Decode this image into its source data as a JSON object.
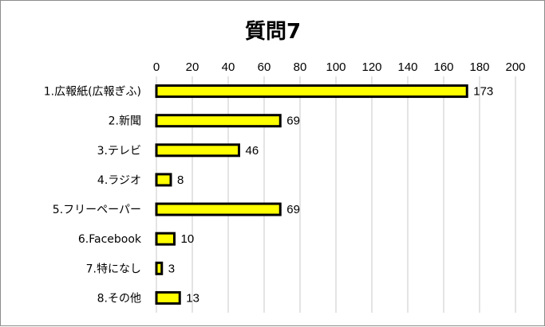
{
  "chart_data": {
    "type": "bar",
    "orientation": "horizontal",
    "title": "質問7",
    "categories": [
      "1.広報紙(広報ぎふ)",
      "2.新聞",
      "3.テレビ",
      "4.ラジオ",
      "5.フリーペーパー",
      "6.Facebook",
      "7.特になし",
      "8.その他"
    ],
    "values": [
      173,
      69,
      46,
      8,
      69,
      10,
      3,
      13
    ],
    "xlim": [
      0,
      200
    ],
    "xticks": [
      0,
      20,
      40,
      60,
      80,
      100,
      120,
      140,
      160,
      180,
      200
    ],
    "x_axis_position": "top",
    "grid": "vertical",
    "legend": "none",
    "data_labels": true,
    "bar_color": "#ffff00",
    "bar_border_color": "#000000",
    "grid_color": "#c8c8c8"
  }
}
